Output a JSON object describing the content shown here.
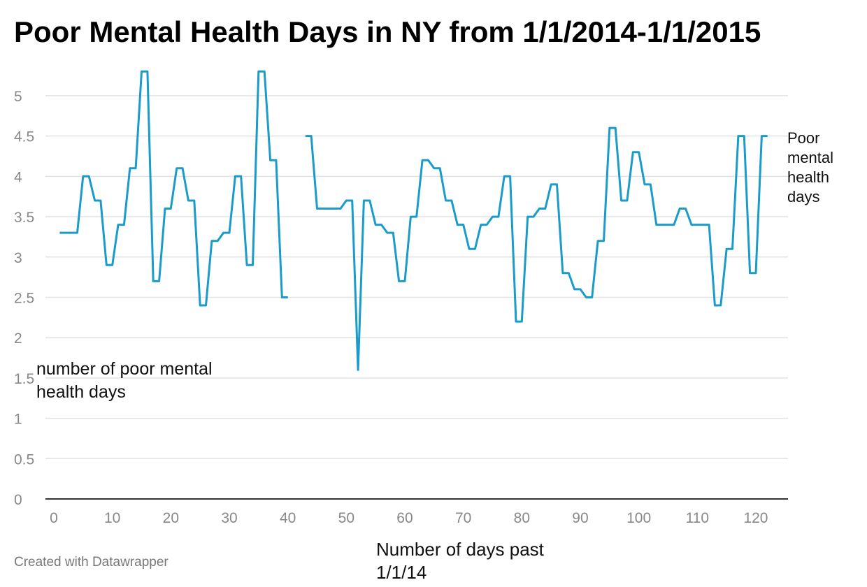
{
  "title": "Poor Mental Health Days in NY from 1/1/2014-1/1/2015",
  "footer": "Created with Datawrapper",
  "chart_data": {
    "type": "line",
    "title": "Poor Mental Health Days in NY from 1/1/2014-1/1/2015",
    "xlabel": "Number of days past 1/1/14",
    "ylabel": "number of poor mental health days",
    "xlim": [
      0,
      125
    ],
    "ylim": [
      0,
      5.4
    ],
    "x_ticks": [
      0,
      10,
      20,
      30,
      40,
      50,
      60,
      70,
      80,
      90,
      100,
      110,
      120
    ],
    "y_ticks": [
      0,
      0.5,
      1,
      1.5,
      2,
      2.5,
      3,
      3.5,
      4,
      4.5,
      5
    ],
    "y_tick_labels": [
      "0",
      "0.5",
      "1",
      "1.5",
      "2",
      "2.5",
      "3",
      "3.5",
      "4",
      "4.5",
      "5"
    ],
    "grid": "horizontal",
    "color": "#1a9bc9",
    "series": [
      {
        "name": "Poor mental health days",
        "points": [
          [
            1,
            3.3
          ],
          [
            4,
            3.3
          ],
          [
            5,
            4.0
          ],
          [
            6,
            4.0
          ],
          [
            7,
            3.7
          ],
          [
            8,
            3.7
          ],
          [
            9,
            2.9
          ],
          [
            10,
            2.9
          ],
          [
            11,
            3.4
          ],
          [
            12,
            3.4
          ],
          [
            13,
            4.1
          ],
          [
            14,
            4.1
          ],
          [
            15,
            5.3
          ],
          [
            16,
            5.3
          ],
          [
            17,
            2.7
          ],
          [
            18,
            2.7
          ],
          [
            19,
            3.6
          ],
          [
            20,
            3.6
          ],
          [
            21,
            4.1
          ],
          [
            22,
            4.1
          ],
          [
            23,
            3.7
          ],
          [
            24,
            3.7
          ],
          [
            25,
            2.4
          ],
          [
            26,
            2.4
          ],
          [
            27,
            3.2
          ],
          [
            28,
            3.2
          ],
          [
            29,
            3.3
          ],
          [
            30,
            3.3
          ],
          [
            31,
            4.0
          ],
          [
            32,
            4.0
          ],
          [
            33,
            2.9
          ],
          [
            34,
            2.9
          ],
          [
            35,
            5.3
          ],
          [
            36,
            5.3
          ],
          [
            37,
            4.2
          ],
          [
            38,
            4.2
          ],
          [
            39,
            2.5
          ],
          [
            40,
            2.5
          ],
          null,
          [
            43,
            4.5
          ],
          [
            44,
            4.5
          ],
          [
            45,
            3.6
          ],
          [
            49,
            3.6
          ],
          [
            50,
            3.7
          ],
          [
            51,
            3.7
          ],
          [
            52,
            1.6
          ],
          [
            53,
            3.7
          ],
          [
            54,
            3.7
          ],
          [
            55,
            3.4
          ],
          [
            56,
            3.4
          ],
          [
            57,
            3.3
          ],
          [
            58,
            3.3
          ],
          [
            59,
            2.7
          ],
          [
            60,
            2.7
          ],
          [
            61,
            3.5
          ],
          [
            62,
            3.5
          ],
          [
            63,
            4.2
          ],
          [
            64,
            4.2
          ],
          [
            65,
            4.1
          ],
          [
            66,
            4.1
          ],
          [
            67,
            3.7
          ],
          [
            68,
            3.7
          ],
          [
            69,
            3.4
          ],
          [
            70,
            3.4
          ],
          [
            71,
            3.1
          ],
          [
            72,
            3.1
          ],
          [
            73,
            3.4
          ],
          [
            74,
            3.4
          ],
          [
            75,
            3.5
          ],
          [
            76,
            3.5
          ],
          [
            77,
            4.0
          ],
          [
            78,
            4.0
          ],
          [
            79,
            2.2
          ],
          [
            80,
            2.2
          ],
          [
            81,
            3.5
          ],
          [
            82,
            3.5
          ],
          [
            83,
            3.6
          ],
          [
            84,
            3.6
          ],
          [
            85,
            3.9
          ],
          [
            86,
            3.9
          ],
          [
            87,
            2.8
          ],
          [
            88,
            2.8
          ],
          [
            89,
            2.6
          ],
          [
            90,
            2.6
          ],
          [
            91,
            2.5
          ],
          [
            92,
            2.5
          ],
          [
            93,
            3.2
          ],
          [
            94,
            3.2
          ],
          [
            95,
            4.6
          ],
          [
            96,
            4.6
          ],
          [
            97,
            3.7
          ],
          [
            98,
            3.7
          ],
          [
            99,
            4.3
          ],
          [
            100,
            4.3
          ],
          [
            101,
            3.9
          ],
          [
            102,
            3.9
          ],
          [
            103,
            3.4
          ],
          [
            106,
            3.4
          ],
          [
            107,
            3.6
          ],
          [
            108,
            3.6
          ],
          [
            109,
            3.4
          ],
          [
            112,
            3.4
          ],
          [
            113,
            2.4
          ],
          [
            114,
            2.4
          ],
          [
            115,
            3.1
          ],
          [
            116,
            3.1
          ],
          [
            117,
            4.5
          ],
          [
            118,
            4.5
          ],
          [
            119,
            2.8
          ],
          [
            120,
            2.8
          ],
          [
            121,
            4.5
          ],
          [
            122,
            4.5
          ]
        ]
      }
    ]
  }
}
